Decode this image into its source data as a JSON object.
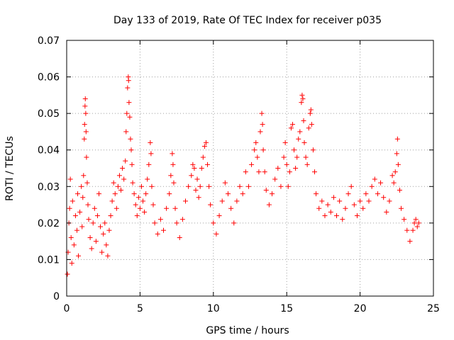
{
  "chart_data": {
    "type": "scatter",
    "title": "Day 133 of 2019, Rate Of TEC Index for receiver p035",
    "xlabel": "GPS time / hours",
    "ylabel": "ROTI / TECUs",
    "xlim": [
      0,
      25
    ],
    "ylim": [
      0,
      0.07
    ],
    "xticks": [
      0,
      5,
      10,
      15,
      20,
      25
    ],
    "yticks": [
      0,
      0.01,
      0.02,
      0.03,
      0.04,
      0.05,
      0.06,
      0.07
    ],
    "xtick_labels": [
      "0",
      "5",
      "10",
      "15",
      "20",
      "25"
    ],
    "ytick_labels": [
      "0",
      "0.01",
      "0.02",
      "0.03",
      "0.04",
      "0.05",
      "0.06",
      "0.07"
    ],
    "grid": true,
    "marker": "plus",
    "color": "#ff0000",
    "series": [
      {
        "points": [
          [
            0.05,
            0.006
          ],
          [
            0.1,
            0.012
          ],
          [
            0.15,
            0.02
          ],
          [
            0.2,
            0.024
          ],
          [
            0.25,
            0.032
          ],
          [
            0.3,
            0.016
          ],
          [
            0.35,
            0.009
          ],
          [
            0.4,
            0.026
          ],
          [
            0.5,
            0.014
          ],
          [
            0.6,
            0.022
          ],
          [
            0.7,
            0.018
          ],
          [
            0.75,
            0.028
          ],
          [
            0.8,
            0.011
          ],
          [
            0.9,
            0.023
          ],
          [
            1.0,
            0.03
          ],
          [
            1.05,
            0.019
          ],
          [
            1.1,
            0.027
          ],
          [
            1.15,
            0.033
          ],
          [
            1.2,
            0.043
          ],
          [
            1.22,
            0.047
          ],
          [
            1.25,
            0.052
          ],
          [
            1.27,
            0.054
          ],
          [
            1.3,
            0.05
          ],
          [
            1.32,
            0.045
          ],
          [
            1.35,
            0.038
          ],
          [
            1.4,
            0.031
          ],
          [
            1.45,
            0.025
          ],
          [
            1.5,
            0.021
          ],
          [
            1.6,
            0.016
          ],
          [
            1.7,
            0.013
          ],
          [
            1.8,
            0.02
          ],
          [
            1.9,
            0.024
          ],
          [
            2.0,
            0.015
          ],
          [
            2.1,
            0.022
          ],
          [
            2.2,
            0.028
          ],
          [
            2.3,
            0.019
          ],
          [
            2.4,
            0.012
          ],
          [
            2.5,
            0.017
          ],
          [
            2.6,
            0.02
          ],
          [
            2.7,
            0.014
          ],
          [
            2.8,
            0.011
          ],
          [
            2.9,
            0.018
          ],
          [
            3.0,
            0.022
          ],
          [
            3.1,
            0.026
          ],
          [
            3.2,
            0.031
          ],
          [
            3.3,
            0.028
          ],
          [
            3.4,
            0.024
          ],
          [
            3.5,
            0.03
          ],
          [
            3.6,
            0.033
          ],
          [
            3.7,
            0.029
          ],
          [
            3.8,
            0.035
          ],
          [
            3.9,
            0.032
          ],
          [
            4.0,
            0.037
          ],
          [
            4.05,
            0.045
          ],
          [
            4.1,
            0.05
          ],
          [
            4.15,
            0.057
          ],
          [
            4.2,
            0.06
          ],
          [
            4.22,
            0.059
          ],
          [
            4.25,
            0.053
          ],
          [
            4.3,
            0.049
          ],
          [
            4.35,
            0.043
          ],
          [
            4.4,
            0.04
          ],
          [
            4.45,
            0.036
          ],
          [
            4.5,
            0.031
          ],
          [
            4.6,
            0.028
          ],
          [
            4.7,
            0.025
          ],
          [
            4.8,
            0.022
          ],
          [
            4.9,
            0.027
          ],
          [
            5.0,
            0.024
          ],
          [
            5.1,
            0.03
          ],
          [
            5.2,
            0.026
          ],
          [
            5.3,
            0.023
          ],
          [
            5.4,
            0.028
          ],
          [
            5.5,
            0.032
          ],
          [
            5.6,
            0.036
          ],
          [
            5.7,
            0.042
          ],
          [
            5.75,
            0.039
          ],
          [
            5.8,
            0.03
          ],
          [
            5.9,
            0.025
          ],
          [
            6.0,
            0.02
          ],
          [
            6.2,
            0.017
          ],
          [
            6.4,
            0.021
          ],
          [
            6.6,
            0.018
          ],
          [
            6.8,
            0.024
          ],
          [
            7.0,
            0.028
          ],
          [
            7.1,
            0.033
          ],
          [
            7.2,
            0.039
          ],
          [
            7.25,
            0.036
          ],
          [
            7.3,
            0.031
          ],
          [
            7.4,
            0.024
          ],
          [
            7.5,
            0.02
          ],
          [
            7.7,
            0.016
          ],
          [
            7.9,
            0.021
          ],
          [
            8.1,
            0.026
          ],
          [
            8.3,
            0.03
          ],
          [
            8.5,
            0.033
          ],
          [
            8.6,
            0.036
          ],
          [
            8.7,
            0.035
          ],
          [
            8.8,
            0.029
          ],
          [
            8.9,
            0.032
          ],
          [
            9.0,
            0.027
          ],
          [
            9.1,
            0.03
          ],
          [
            9.2,
            0.035
          ],
          [
            9.3,
            0.038
          ],
          [
            9.4,
            0.041
          ],
          [
            9.5,
            0.042
          ],
          [
            9.6,
            0.036
          ],
          [
            9.7,
            0.03
          ],
          [
            9.8,
            0.025
          ],
          [
            10.0,
            0.02
          ],
          [
            10.2,
            0.017
          ],
          [
            10.4,
            0.022
          ],
          [
            10.6,
            0.026
          ],
          [
            10.8,
            0.031
          ],
          [
            11.0,
            0.028
          ],
          [
            11.2,
            0.024
          ],
          [
            11.4,
            0.02
          ],
          [
            11.6,
            0.026
          ],
          [
            11.8,
            0.03
          ],
          [
            12.0,
            0.028
          ],
          [
            12.2,
            0.034
          ],
          [
            12.4,
            0.03
          ],
          [
            12.6,
            0.036
          ],
          [
            12.8,
            0.04
          ],
          [
            12.9,
            0.042
          ],
          [
            13.0,
            0.038
          ],
          [
            13.1,
            0.034
          ],
          [
            13.2,
            0.045
          ],
          [
            13.3,
            0.05
          ],
          [
            13.35,
            0.047
          ],
          [
            13.4,
            0.04
          ],
          [
            13.5,
            0.034
          ],
          [
            13.6,
            0.029
          ],
          [
            13.8,
            0.025
          ],
          [
            14.0,
            0.028
          ],
          [
            14.2,
            0.032
          ],
          [
            14.4,
            0.035
          ],
          [
            14.6,
            0.03
          ],
          [
            14.8,
            0.038
          ],
          [
            14.9,
            0.042
          ],
          [
            15.0,
            0.036
          ],
          [
            15.1,
            0.03
          ],
          [
            15.2,
            0.034
          ],
          [
            15.3,
            0.046
          ],
          [
            15.4,
            0.047
          ],
          [
            15.5,
            0.04
          ],
          [
            15.6,
            0.035
          ],
          [
            15.7,
            0.038
          ],
          [
            15.8,
            0.043
          ],
          [
            15.9,
            0.045
          ],
          [
            16.0,
            0.053
          ],
          [
            16.05,
            0.055
          ],
          [
            16.1,
            0.054
          ],
          [
            16.15,
            0.048
          ],
          [
            16.2,
            0.042
          ],
          [
            16.3,
            0.038
          ],
          [
            16.4,
            0.036
          ],
          [
            16.5,
            0.046
          ],
          [
            16.6,
            0.05
          ],
          [
            16.65,
            0.051
          ],
          [
            16.7,
            0.047
          ],
          [
            16.8,
            0.04
          ],
          [
            16.9,
            0.034
          ],
          [
            17.0,
            0.028
          ],
          [
            17.2,
            0.024
          ],
          [
            17.4,
            0.026
          ],
          [
            17.6,
            0.022
          ],
          [
            17.8,
            0.025
          ],
          [
            18.0,
            0.023
          ],
          [
            18.2,
            0.027
          ],
          [
            18.4,
            0.022
          ],
          [
            18.6,
            0.026
          ],
          [
            18.8,
            0.021
          ],
          [
            19.0,
            0.024
          ],
          [
            19.2,
            0.028
          ],
          [
            19.4,
            0.03
          ],
          [
            19.6,
            0.025
          ],
          [
            19.8,
            0.022
          ],
          [
            20.0,
            0.026
          ],
          [
            20.2,
            0.024
          ],
          [
            20.4,
            0.028
          ],
          [
            20.6,
            0.026
          ],
          [
            20.8,
            0.03
          ],
          [
            21.0,
            0.032
          ],
          [
            21.2,
            0.028
          ],
          [
            21.4,
            0.031
          ],
          [
            21.6,
            0.027
          ],
          [
            21.8,
            0.023
          ],
          [
            22.0,
            0.026
          ],
          [
            22.2,
            0.033
          ],
          [
            22.3,
            0.031
          ],
          [
            22.4,
            0.034
          ],
          [
            22.5,
            0.039
          ],
          [
            22.55,
            0.043
          ],
          [
            22.6,
            0.036
          ],
          [
            22.7,
            0.029
          ],
          [
            22.8,
            0.024
          ],
          [
            23.0,
            0.021
          ],
          [
            23.2,
            0.018
          ],
          [
            23.4,
            0.015
          ],
          [
            23.6,
            0.018
          ],
          [
            23.7,
            0.02
          ],
          [
            23.8,
            0.021
          ],
          [
            23.9,
            0.019
          ],
          [
            24.0,
            0.02
          ]
        ]
      }
    ]
  }
}
